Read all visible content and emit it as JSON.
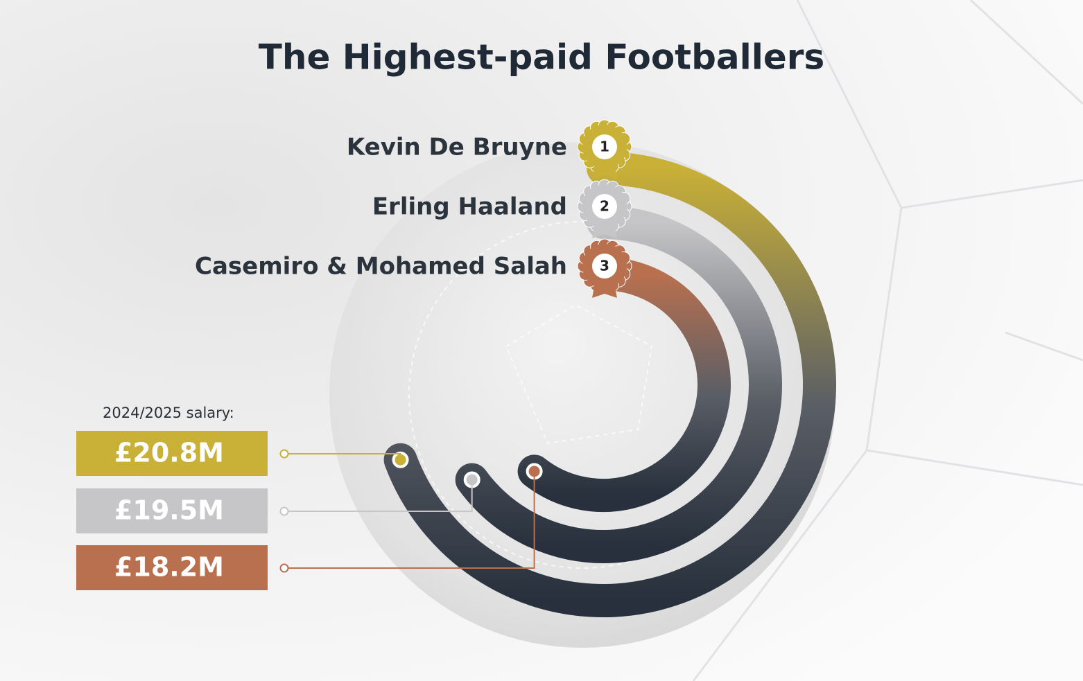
{
  "chart_data": {
    "type": "radial-bar",
    "title": "The Highest-paid Footballers",
    "value_caption": "2024/2025 salary:",
    "categories": [
      "Kevin De Bruyne",
      "Erling Haaland",
      "Casemiro & Mohamed Salah"
    ],
    "ranks": [
      1,
      2,
      3
    ],
    "values": [
      20.8,
      19.5,
      18.2
    ],
    "value_labels": [
      "£20.8M",
      "£19.5M",
      "£18.2M"
    ],
    "colors": [
      "#c9b037",
      "#c6c6c8",
      "#b9704f"
    ]
  }
}
